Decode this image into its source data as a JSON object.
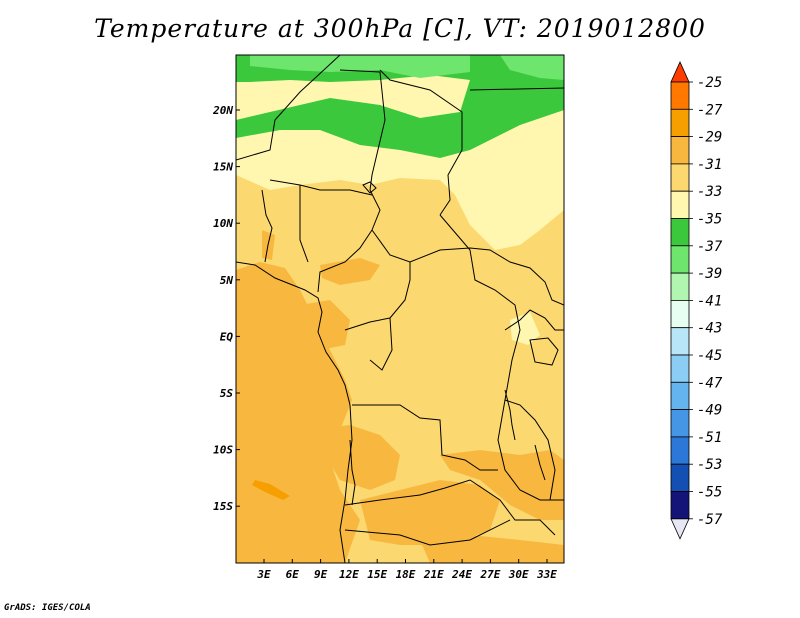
{
  "title": "Temperature at 300hPa [C], VT: 2019012800",
  "credit": "GrADS: IGES/COLA",
  "map": {
    "lon_labels": [
      "3E",
      "6E",
      "9E",
      "12E",
      "15E",
      "18E",
      "21E",
      "24E",
      "27E",
      "30E",
      "33E"
    ],
    "lat_labels": [
      "20N",
      "15N",
      "10N",
      "5N",
      "EQ",
      "5S",
      "10S",
      "15S"
    ]
  },
  "colorbar": {
    "labels": [
      "-25",
      "-27",
      "-29",
      "-31",
      "-33",
      "-35",
      "-37",
      "-39",
      "-41",
      "-43",
      "-45",
      "-47",
      "-49",
      "-51",
      "-53",
      "-55",
      "-57"
    ],
    "colors": [
      "#ff3c00",
      "#ff7800",
      "#f5a000",
      "#f8b840",
      "#fbd870",
      "#fff7b0",
      "#3cc83c",
      "#6ee66e",
      "#b0f5b0",
      "#e6fff0",
      "#b8e6f8",
      "#8ccdf5",
      "#64b4f0",
      "#4696e6",
      "#2c78d8",
      "#1450b4",
      "#141478",
      "#e6e6f5"
    ]
  },
  "legend_colors": {
    "c31": "#f8b840",
    "c33": "#fbd870",
    "c35": "#fff7b0",
    "c37": "#3cc83c",
    "c39": "#6ee66e"
  }
}
